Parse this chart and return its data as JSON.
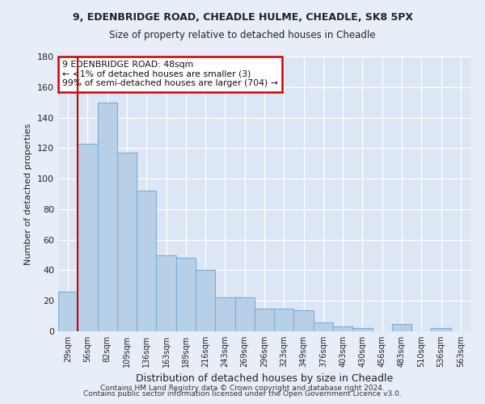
{
  "title1": "9, EDENBRIDGE ROAD, CHEADLE HULME, CHEADLE, SK8 5PX",
  "title2": "Size of property relative to detached houses in Cheadle",
  "xlabel": "Distribution of detached houses by size in Cheadle",
  "ylabel": "Number of detached properties",
  "categories": [
    "29sqm",
    "56sqm",
    "82sqm",
    "109sqm",
    "136sqm",
    "163sqm",
    "189sqm",
    "216sqm",
    "243sqm",
    "269sqm",
    "296sqm",
    "323sqm",
    "349sqm",
    "376sqm",
    "403sqm",
    "430sqm",
    "456sqm",
    "483sqm",
    "510sqm",
    "536sqm",
    "563sqm"
  ],
  "values": [
    26,
    123,
    150,
    117,
    92,
    50,
    48,
    40,
    22,
    22,
    15,
    15,
    14,
    6,
    3,
    2,
    0,
    5,
    0,
    2,
    0
  ],
  "bar_color": "#b8cfe8",
  "bar_edge_color": "#7aaed6",
  "highlight_color": "#cc0000",
  "annotation_line1": "9 EDENBRIDGE ROAD: 48sqm",
  "annotation_line2": "← <1% of detached houses are smaller (3)",
  "annotation_line3": "99% of semi-detached houses are larger (704) →",
  "annotation_box_color": "#ffffff",
  "annotation_box_edge": "#cc0000",
  "ylim": [
    0,
    180
  ],
  "yticks": [
    0,
    20,
    40,
    60,
    80,
    100,
    120,
    140,
    160,
    180
  ],
  "footer1": "Contains HM Land Registry data © Crown copyright and database right 2024.",
  "footer2": "Contains public sector information licensed under the Open Government Licence v3.0.",
  "bg_color": "#e8eef8",
  "plot_bg_color": "#dce6f4"
}
